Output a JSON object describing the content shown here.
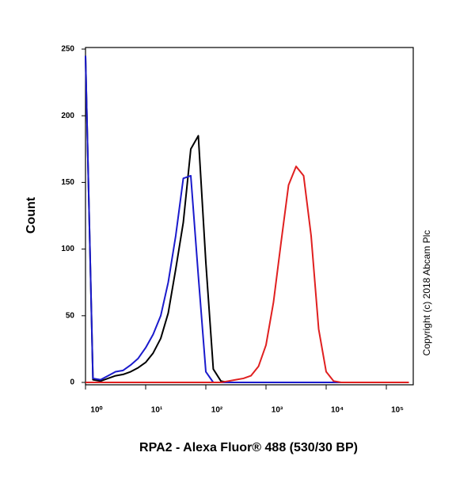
{
  "chart_data": {
    "type": "line",
    "xlabel": "RPA2 - Alexa Fluor® 488 (530/30 BP)",
    "ylabel": "Count",
    "annotation": "Copyright (c) 2018 Abcam Plc",
    "xscale": "log",
    "x": [
      1,
      1.33,
      1.78,
      2.37,
      3.16,
      4.22,
      5.62,
      7.5,
      10,
      13.3,
      17.8,
      23.7,
      31.6,
      42.2,
      56.2,
      75,
      100,
      133,
      178,
      237,
      316,
      422,
      562,
      750,
      1000,
      1330,
      1780,
      2370,
      3160,
      4220,
      5620,
      7500,
      10000,
      13300,
      17800,
      23700,
      31600,
      42200,
      56200,
      75000,
      100000,
      133000,
      178000,
      237000
    ],
    "series": [
      {
        "color": "#000000",
        "values": [
          245,
          2,
          1,
          3,
          5,
          6,
          8,
          11,
          15,
          22,
          33,
          52,
          85,
          120,
          175,
          185,
          90,
          10,
          1,
          0,
          0,
          0,
          0,
          0,
          0,
          0,
          0,
          0,
          0,
          0,
          0,
          0,
          0,
          0,
          0,
          0,
          0,
          0,
          0,
          0,
          0,
          0,
          0,
          0
        ]
      },
      {
        "color": "#1a1acc",
        "values": [
          245,
          3,
          2,
          5,
          8,
          9,
          13,
          18,
          26,
          36,
          50,
          75,
          110,
          153,
          155,
          80,
          8,
          0,
          0,
          0,
          0,
          0,
          0,
          0,
          0,
          0,
          0,
          0,
          0,
          0,
          0,
          0,
          0,
          0,
          0,
          0,
          0,
          0,
          0,
          0,
          0,
          0,
          0,
          0
        ]
      },
      {
        "color": "#e02020",
        "values": [
          0,
          0,
          0,
          0,
          0,
          0,
          0,
          0,
          0,
          0,
          0,
          0,
          0,
          0,
          0,
          0,
          0,
          0,
          0,
          1,
          2,
          3,
          5,
          12,
          28,
          60,
          105,
          148,
          162,
          155,
          110,
          40,
          8,
          1,
          0,
          0,
          0,
          0,
          0,
          0,
          0,
          0,
          0,
          0
        ]
      }
    ],
    "xlim": [
      1,
      280000
    ],
    "xticks": [
      {
        "value": 1,
        "label": "10⁰"
      },
      {
        "value": 10,
        "label": "10¹"
      },
      {
        "value": 100,
        "label": "10²"
      },
      {
        "value": 1000,
        "label": "10³"
      },
      {
        "value": 10000,
        "label": "10⁴"
      },
      {
        "value": 100000,
        "label": "10⁵"
      }
    ],
    "ylim": [
      0,
      250
    ],
    "yticks": [
      0,
      50,
      100,
      150,
      200,
      250
    ]
  }
}
